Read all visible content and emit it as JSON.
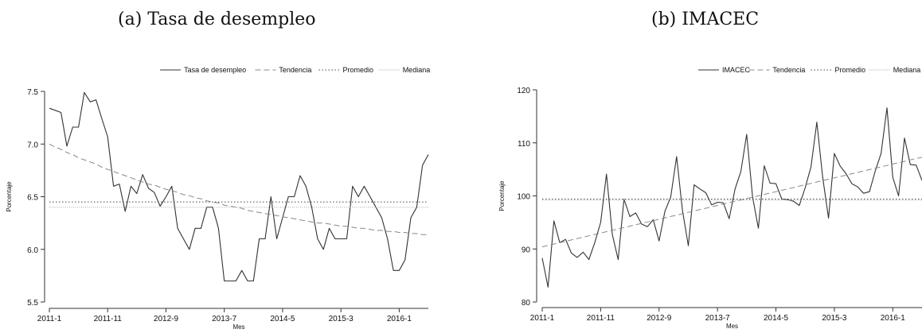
{
  "panels": [
    {
      "title": "(a) Tasa de desempleo",
      "chart_data": {
        "type": "line",
        "xlabel": "Mes",
        "ylabel": "Porcentaje",
        "ylim": [
          5.5,
          7.5
        ],
        "yticks": [
          "5.5",
          "6.0",
          "6.5",
          "7.0",
          "7.5"
        ],
        "xtick_labels": [
          "2011-1",
          "2011-11",
          "2012-9",
          "2013-7",
          "2014-5",
          "2015-3",
          "2016-1"
        ],
        "xtick_index": [
          0,
          10,
          20,
          30,
          40,
          50,
          60
        ],
        "grid": false,
        "legend_position": "top-right",
        "legend": [
          "Tasa de desempleo",
          "Tendencia",
          "Promedio",
          "Mediana"
        ],
        "series": [
          {
            "name": "Tasa de desempleo",
            "style": "solid",
            "values": [
              7.34,
              7.32,
              7.3,
              6.98,
              7.16,
              7.16,
              7.49,
              7.4,
              7.42,
              7.24,
              7.07,
              6.6,
              6.62,
              6.36,
              6.6,
              6.53,
              6.71,
              6.58,
              6.54,
              6.41,
              6.5,
              6.6,
              6.2,
              6.1,
              6.0,
              6.2,
              6.2,
              6.4,
              6.4,
              6.2,
              5.7,
              5.7,
              5.7,
              5.8,
              5.7,
              5.7,
              6.1,
              6.1,
              6.5,
              6.1,
              6.3,
              6.5,
              6.5,
              6.7,
              6.6,
              6.4,
              6.1,
              6.0,
              6.2,
              6.1,
              6.1,
              6.1,
              6.6,
              6.5,
              6.6,
              6.5,
              6.4,
              6.3,
              6.1,
              5.8,
              5.8,
              5.9,
              6.3,
              6.4,
              6.8,
              6.9
            ]
          },
          {
            "name": "Tendencia",
            "style": "dashed",
            "values": [
              7.0,
              6.97,
              6.95,
              6.92,
              6.9,
              6.87,
              6.85,
              6.83,
              6.81,
              6.78,
              6.76,
              6.74,
              6.72,
              6.7,
              6.68,
              6.66,
              6.64,
              6.62,
              6.61,
              6.59,
              6.57,
              6.56,
              6.54,
              6.52,
              6.51,
              6.49,
              6.48,
              6.46,
              6.45,
              6.44,
              6.42,
              6.41,
              6.4,
              6.39,
              6.37,
              6.36,
              6.35,
              6.34,
              6.33,
              6.32,
              6.31,
              6.3,
              6.29,
              6.28,
              6.27,
              6.26,
              6.25,
              6.25,
              6.24,
              6.23,
              6.22,
              6.22,
              6.21,
              6.2,
              6.2,
              6.19,
              6.18,
              6.18,
              6.17,
              6.17,
              6.16,
              6.16,
              6.15,
              6.15,
              6.14,
              6.14
            ]
          },
          {
            "name": "Promedio",
            "style": "dotted",
            "value": 6.45
          },
          {
            "name": "Mediana",
            "style": "fine-dotted",
            "value": 6.4
          }
        ]
      }
    },
    {
      "title": "(b) IMACEC",
      "chart_data": {
        "type": "line",
        "xlabel": "Mes",
        "ylabel": "Porcentaje",
        "ylim": [
          80,
          120
        ],
        "yticks": [
          "80",
          "90",
          "100",
          "110",
          "120"
        ],
        "xtick_labels": [
          "2011-1",
          "2011-11",
          "2012-9",
          "2013-7",
          "2014-5",
          "2015-3",
          "2016-1"
        ],
        "xtick_index": [
          0,
          10,
          20,
          30,
          40,
          50,
          60
        ],
        "grid": false,
        "legend_position": "top-right",
        "legend": [
          "IMACEC",
          "Tendencia",
          "Promedio",
          "Mediana"
        ],
        "series": [
          {
            "name": "IMACEC",
            "style": "solid",
            "values": [
              88.3,
              82.8,
              95.3,
              91.2,
              91.8,
              89.2,
              88.4,
              89.4,
              88.0,
              91.2,
              95.0,
              104.1,
              92.7,
              88.0,
              99.4,
              96.1,
              96.8,
              94.7,
              94.2,
              95.5,
              91.5,
              97.1,
              99.8,
              107.4,
              97.3,
              90.6,
              102.1,
              101.3,
              100.6,
              98.3,
              98.8,
              98.7,
              95.7,
              101.3,
              104.6,
              111.6,
              99.8,
              93.9,
              105.7,
              102.4,
              102.3,
              99.4,
              99.3,
              99.0,
              98.2,
              101.5,
              105.5,
              113.9,
              103.6,
              95.8,
              108.0,
              105.6,
              104.2,
              102.3,
              101.7,
              100.5,
              100.8,
              104.7,
              108.0,
              116.6,
              103.5,
              100.0,
              110.9,
              105.9,
              105.8,
              102.9
            ]
          },
          {
            "name": "Tendencia",
            "style": "dashed",
            "values": [
              90.4,
              90.66,
              90.92,
              91.18,
              91.44,
              91.7,
              91.96,
              92.22,
              92.48,
              92.74,
              93.0,
              93.26,
              93.52,
              93.78,
              94.04,
              94.3,
              94.56,
              94.82,
              95.08,
              95.34,
              95.6,
              95.86,
              96.12,
              96.38,
              96.64,
              96.9,
              97.16,
              97.42,
              97.68,
              97.94,
              98.2,
              98.46,
              98.72,
              98.98,
              99.24,
              99.5,
              99.76,
              100.02,
              100.28,
              100.54,
              100.8,
              101.06,
              101.32,
              101.58,
              101.84,
              102.1,
              102.36,
              102.62,
              102.88,
              103.14,
              103.4,
              103.66,
              103.92,
              104.18,
              104.44,
              104.7,
              104.96,
              105.22,
              105.48,
              105.74,
              106.0,
              106.26,
              106.52,
              106.78,
              107.04,
              107.3
            ]
          },
          {
            "name": "Promedio",
            "style": "dotted",
            "value": 99.4
          },
          {
            "name": "Mediana",
            "style": "fine-dotted",
            "value": 99.2
          }
        ]
      }
    }
  ]
}
